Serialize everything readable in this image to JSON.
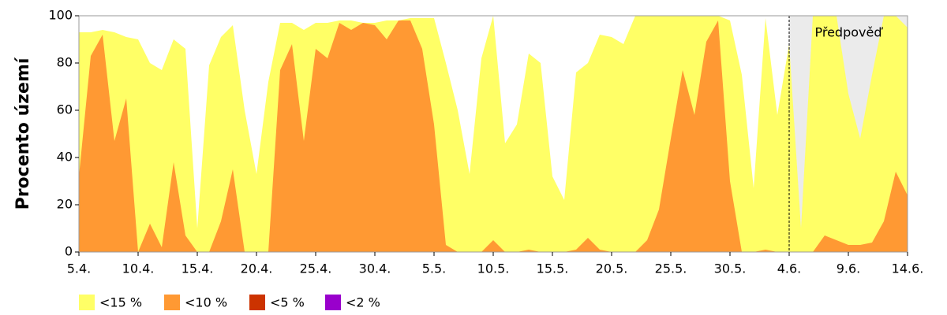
{
  "chart_data": {
    "type": "area",
    "y_label": "Procento území",
    "categories": [
      "5.4.",
      null,
      null,
      null,
      null,
      "10.4.",
      null,
      null,
      null,
      null,
      "15.4.",
      null,
      null,
      null,
      null,
      "20.4.",
      null,
      null,
      null,
      null,
      "25.4.",
      null,
      null,
      null,
      null,
      "30.4.",
      null,
      null,
      null,
      null,
      "5.5.",
      null,
      null,
      null,
      null,
      "10.5.",
      null,
      null,
      null,
      null,
      "15.5.",
      null,
      null,
      null,
      null,
      "20.5.",
      null,
      null,
      null,
      null,
      "25.5.",
      null,
      null,
      null,
      null,
      "30.5.",
      null,
      null,
      null,
      null,
      "4.6.",
      null,
      null,
      null,
      null,
      "9.6.",
      null,
      null,
      null,
      null,
      "14.6."
    ],
    "series": [
      {
        "name": "<15 %",
        "color": "#ffff66",
        "values": [
          93,
          93,
          94,
          93,
          91,
          90,
          80,
          77,
          90,
          86,
          10,
          79,
          91,
          96,
          60,
          33,
          72,
          97,
          97,
          94,
          97,
          97,
          98,
          98,
          97,
          97,
          98,
          98,
          99,
          99,
          99,
          80,
          60,
          33,
          82,
          100,
          46,
          54,
          84,
          80,
          32,
          22,
          76,
          80,
          92,
          91,
          88,
          100,
          100,
          100,
          100,
          100,
          100,
          100,
          100,
          98,
          75,
          27,
          99,
          58,
          88,
          10,
          100,
          100,
          100,
          67,
          48,
          75,
          100,
          100,
          95
        ]
      },
      {
        "name": "<10 %",
        "color": "#ff9933",
        "values": [
          32,
          83,
          92,
          47,
          65,
          0,
          12,
          2,
          38,
          7,
          0,
          0,
          13,
          35,
          0,
          0,
          0,
          77,
          88,
          47,
          86,
          82,
          97,
          94,
          97,
          96,
          90,
          98,
          98,
          86,
          54,
          3,
          0,
          0,
          0,
          5,
          0,
          0,
          1,
          0,
          0,
          0,
          1,
          6,
          1,
          0,
          0,
          0,
          5,
          18,
          48,
          77,
          58,
          89,
          98,
          30,
          0,
          0,
          1,
          0,
          0,
          0,
          0,
          7,
          5,
          3,
          3,
          4,
          13,
          34,
          24
        ]
      },
      {
        "name": "<5 %",
        "color": "#cc3300",
        "values": [
          0,
          0,
          0,
          0,
          0,
          0,
          0,
          0,
          0,
          0,
          0,
          0,
          0,
          0,
          0,
          0,
          0,
          0,
          0,
          0,
          0,
          0,
          0,
          0,
          0,
          0,
          0,
          0,
          0,
          0,
          0,
          0,
          0,
          0,
          0,
          0,
          0,
          0,
          0,
          0,
          0,
          0,
          0,
          0,
          0,
          0,
          0,
          0,
          0,
          0,
          0,
          0,
          0,
          0,
          0,
          0,
          0,
          0,
          0,
          0,
          0,
          0,
          0,
          0,
          0,
          0,
          0,
          0,
          0,
          0,
          0
        ]
      },
      {
        "name": "<2 %",
        "color": "#9900cc",
        "values": [
          0,
          0,
          0,
          0,
          0,
          0,
          0,
          0,
          0,
          0,
          0,
          0,
          0,
          0,
          0,
          0,
          0,
          0,
          0,
          0,
          0,
          0,
          0,
          0,
          0,
          0,
          0,
          0,
          0,
          0,
          0,
          0,
          0,
          0,
          0,
          0,
          0,
          0,
          0,
          0,
          0,
          0,
          0,
          0,
          0,
          0,
          0,
          0,
          0,
          0,
          0,
          0,
          0,
          0,
          0,
          0,
          0,
          0,
          0,
          0,
          0,
          0,
          0,
          0,
          0,
          0,
          0,
          0,
          0,
          0,
          0
        ]
      }
    ],
    "forecast": {
      "label": "Předpověď",
      "from": "4.6."
    },
    "ylim": [
      0,
      100
    ],
    "yticks": [
      0,
      20,
      40,
      60,
      80,
      100
    ],
    "grid": false
  }
}
